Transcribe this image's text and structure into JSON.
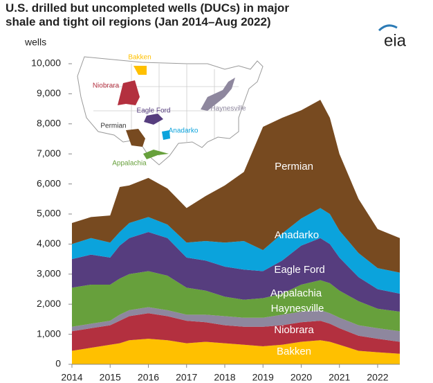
{
  "chart_data": {
    "type": "stacked-area",
    "title": "U.S. drilled but uncompleted wells (DUCs) in major shale and tight oil regions (Jan 2014–Aug 2022)",
    "y_label": "wells",
    "logo": "eia",
    "x": [
      2014,
      2014.5,
      2015,
      2015.25,
      2015.5,
      2016,
      2016.5,
      2017,
      2017.5,
      2018,
      2018.5,
      2019,
      2019.5,
      2020,
      2020.5,
      2020.75,
      2021,
      2021.5,
      2022,
      2022.58
    ],
    "xlim": [
      2014,
      2022.58
    ],
    "xticks": [
      2014,
      2015,
      2016,
      2017,
      2018,
      2019,
      2020,
      2021,
      2022
    ],
    "ylim": [
      0,
      10000
    ],
    "yticks": [
      0,
      {
        "value": 1000,
        "label": "1,000"
      },
      {
        "value": 2000,
        "label": "2,000"
      },
      {
        "value": 3000,
        "label": "3,000"
      },
      {
        "value": 4000,
        "label": "4,000"
      },
      {
        "value": 5000,
        "label": "5,000"
      },
      {
        "value": 6000,
        "label": "6,000"
      },
      {
        "value": 7000,
        "label": "7,000"
      },
      {
        "value": 8000,
        "label": "8,000"
      },
      {
        "value": 9000,
        "label": "9,000"
      },
      {
        "value": 10000,
        "label": "10,000"
      }
    ],
    "series": [
      {
        "name": "Bakken",
        "color": "#ffc000",
        "values": [
          450,
          550,
          650,
          700,
          800,
          850,
          800,
          700,
          750,
          700,
          650,
          600,
          650,
          750,
          800,
          750,
          650,
          450,
          400,
          350
        ]
      },
      {
        "name": "Niobrara",
        "color": "#b3303f",
        "values": [
          650,
          650,
          650,
          750,
          800,
          850,
          800,
          750,
          650,
          600,
          600,
          650,
          650,
          650,
          650,
          600,
          550,
          500,
          450,
          400
        ]
      },
      {
        "name": "Haynesville",
        "color": "#8e879e",
        "values": [
          150,
          150,
          150,
          200,
          200,
          200,
          200,
          200,
          250,
          300,
          300,
          300,
          350,
          350,
          350,
          350,
          350,
          350,
          350,
          350
        ]
      },
      {
        "name": "Appalachia",
        "color": "#67a03c",
        "values": [
          1300,
          1300,
          1200,
          1200,
          1200,
          1200,
          1150,
          900,
          800,
          650,
          600,
          650,
          700,
          900,
          1000,
          1000,
          900,
          800,
          650,
          650
        ]
      },
      {
        "name": "Eagle Ford",
        "color": "#563d7e",
        "values": [
          950,
          1000,
          900,
          1100,
          1200,
          1300,
          1250,
          1000,
          1000,
          1000,
          1000,
          900,
          1100,
          1300,
          1400,
          1300,
          1100,
          800,
          650,
          600
        ]
      },
      {
        "name": "Anadarko",
        "color": "#0ba3dc",
        "values": [
          500,
          550,
          500,
          450,
          500,
          500,
          450,
          500,
          650,
          800,
          950,
          700,
          900,
          900,
          1000,
          1000,
          900,
          800,
          700,
          700
        ]
      },
      {
        "name": "Permian",
        "color": "#774a20",
        "values": [
          700,
          700,
          900,
          1500,
          1250,
          1300,
          1200,
          1150,
          1500,
          1900,
          2300,
          4100,
          3850,
          3600,
          3600,
          3200,
          2550,
          1800,
          1300,
          1150
        ]
      }
    ]
  }
}
